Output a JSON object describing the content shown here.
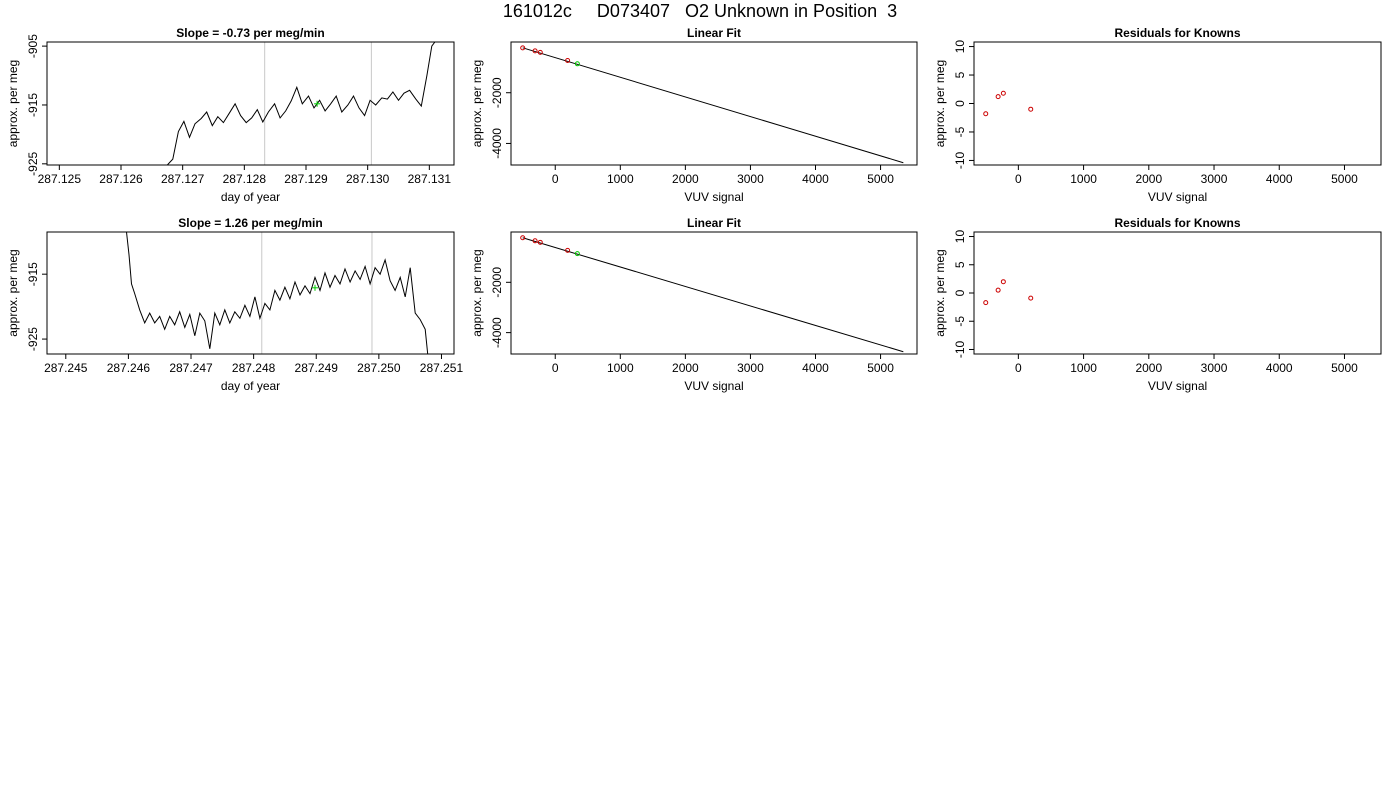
{
  "title": "161012c     D073407   O2 Unknown in Position  3",
  "chart_data": [
    {
      "type": "line",
      "title": "Slope =  -0.73  per meg/min",
      "xlabel": "day of year",
      "ylabel": "approx. per meg",
      "xlim": [
        287.1248,
        287.1314
      ],
      "ylim": [
        -925.2,
        -904.3
      ],
      "xticks": [
        "287.125",
        "287.126",
        "287.127",
        "287.128",
        "287.129",
        "287.130",
        "287.131"
      ],
      "yticks": [
        "-925",
        "-915",
        "-905"
      ],
      "vlines": [
        287.12833,
        287.13006
      ],
      "marker": {
        "x": 287.12918,
        "y": -914.8
      },
      "trace_start": [
        287.12675,
        -925.2
      ],
      "trace": [
        [
          287.12684,
          -924.2
        ],
        [
          287.12693,
          -919.5
        ],
        [
          287.12702,
          -917.8
        ],
        [
          287.12711,
          -920.5
        ],
        [
          287.1272,
          -918.2
        ],
        [
          287.1273,
          -917.3
        ],
        [
          287.12739,
          -916.2
        ],
        [
          287.12748,
          -918.5
        ],
        [
          287.12757,
          -917.0
        ],
        [
          287.12766,
          -918.0
        ],
        [
          287.12775,
          -916.5
        ],
        [
          287.12785,
          -914.8
        ],
        [
          287.12794,
          -916.8
        ],
        [
          287.12803,
          -918.0
        ],
        [
          287.12812,
          -917.2
        ],
        [
          287.12821,
          -915.8
        ],
        [
          287.1283,
          -917.9
        ],
        [
          287.12839,
          -916.2
        ],
        [
          287.12849,
          -914.8
        ],
        [
          287.12858,
          -917.2
        ],
        [
          287.12867,
          -916.0
        ],
        [
          287.12876,
          -914.3
        ],
        [
          287.12885,
          -912.0
        ],
        [
          287.12894,
          -914.8
        ],
        [
          287.12904,
          -913.5
        ],
        [
          287.12913,
          -915.5
        ],
        [
          287.12922,
          -914.2
        ],
        [
          287.12931,
          -916.0
        ],
        [
          287.1294,
          -914.8
        ],
        [
          287.12949,
          -913.5
        ],
        [
          287.12958,
          -916.2
        ],
        [
          287.12968,
          -915.0
        ],
        [
          287.12977,
          -913.5
        ],
        [
          287.12986,
          -915.5
        ],
        [
          287.12995,
          -916.8
        ],
        [
          287.13004,
          -914.2
        ],
        [
          287.13013,
          -915.0
        ],
        [
          287.13023,
          -913.8
        ],
        [
          287.13032,
          -914.0
        ],
        [
          287.13041,
          -912.8
        ],
        [
          287.1305,
          -914.2
        ],
        [
          287.13059,
          -913.0
        ],
        [
          287.13068,
          -912.5
        ],
        [
          287.13078,
          -914.0
        ],
        [
          287.13087,
          -915.2
        ],
        [
          287.13096,
          -910.0
        ],
        [
          287.13104,
          -905.0
        ],
        [
          287.13109,
          -904.3
        ]
      ]
    },
    {
      "type": "scatter",
      "title": "Linear Fit",
      "xlabel": "VUV signal",
      "ylabel": "approx. per meg",
      "xlim": [
        -680,
        5560
      ],
      "ylim": [
        -4850,
        0
      ],
      "xticks": [
        "0",
        "1000",
        "2000",
        "3000",
        "4000",
        "5000"
      ],
      "yticks": [
        "-4000",
        "-2000"
      ],
      "fit_line": [
        [
          -500,
          -230
        ],
        [
          5350,
          -4760
        ]
      ],
      "points": [
        [
          -500,
          -230
        ],
        [
          -310,
          -350
        ],
        [
          -230,
          -410
        ],
        [
          190,
          -730
        ]
      ],
      "unknown": [
        [
          340,
          -860
        ]
      ]
    },
    {
      "type": "scatter",
      "title": "Residuals for Knowns",
      "xlabel": "VUV signal",
      "ylabel": "approx. per meg",
      "xlim": [
        -680,
        5560
      ],
      "ylim": [
        -10.8,
        10.8
      ],
      "xticks": [
        "0",
        "1000",
        "2000",
        "3000",
        "4000",
        "5000"
      ],
      "yticks": [
        "-10",
        "-5",
        "0",
        "5",
        "10"
      ],
      "points": [
        [
          -500,
          -1.8
        ],
        [
          -310,
          1.2
        ],
        [
          -230,
          1.8
        ],
        [
          190,
          -1.0
        ]
      ]
    },
    {
      "type": "line",
      "title": "Slope =  1.26  per meg/min",
      "xlabel": "day of year",
      "ylabel": "approx. per meg",
      "xlim": [
        287.2447,
        287.2512
      ],
      "ylim": [
        -927.3,
        -908.5
      ],
      "xticks": [
        "287.245",
        "287.246",
        "287.247",
        "287.248",
        "287.249",
        "287.250",
        "287.251"
      ],
      "yticks": [
        "-925",
        "-915"
      ],
      "vlines": [
        287.24813,
        287.24989
      ],
      "marker": {
        "x": 287.24898,
        "y": -917.1
      },
      "trace_start": [
        287.24597,
        -908.5
      ],
      "trace": [
        [
          287.24601,
          -912.0
        ],
        [
          287.24605,
          -916.5
        ],
        [
          287.2461,
          -918.0
        ],
        [
          287.24618,
          -920.5
        ],
        [
          287.24626,
          -922.5
        ],
        [
          287.24634,
          -921.0
        ],
        [
          287.24642,
          -922.5
        ],
        [
          287.2465,
          -921.5
        ],
        [
          287.24658,
          -923.5
        ],
        [
          287.24666,
          -921.5
        ],
        [
          287.24674,
          -922.8
        ],
        [
          287.24682,
          -920.8
        ],
        [
          287.2469,
          -923.2
        ],
        [
          287.24698,
          -921.2
        ],
        [
          287.24706,
          -924.5
        ],
        [
          287.24714,
          -921.0
        ],
        [
          287.24722,
          -922.2
        ],
        [
          287.2473,
          -926.5
        ],
        [
          287.24738,
          -921.0
        ],
        [
          287.24746,
          -922.8
        ],
        [
          287.24754,
          -920.5
        ],
        [
          287.24762,
          -922.5
        ],
        [
          287.2477,
          -920.8
        ],
        [
          287.24778,
          -921.8
        ],
        [
          287.24786,
          -919.8
        ],
        [
          287.24794,
          -921.5
        ],
        [
          287.24802,
          -918.5
        ],
        [
          287.2481,
          -921.8
        ],
        [
          287.24818,
          -919.5
        ],
        [
          287.24826,
          -920.5
        ],
        [
          287.24834,
          -917.5
        ],
        [
          287.24842,
          -919.0
        ],
        [
          287.2485,
          -917.0
        ],
        [
          287.24858,
          -918.8
        ],
        [
          287.24866,
          -916.2
        ],
        [
          287.24874,
          -918.2
        ],
        [
          287.24882,
          -916.8
        ],
        [
          287.2489,
          -918.0
        ],
        [
          287.24898,
          -915.5
        ],
        [
          287.24906,
          -917.5
        ],
        [
          287.24914,
          -914.8
        ],
        [
          287.24922,
          -917.0
        ],
        [
          287.2493,
          -915.2
        ],
        [
          287.24938,
          -916.5
        ],
        [
          287.24946,
          -914.2
        ],
        [
          287.24954,
          -916.2
        ],
        [
          287.24962,
          -914.5
        ],
        [
          287.2497,
          -915.8
        ],
        [
          287.24978,
          -913.8
        ],
        [
          287.24986,
          -916.5
        ],
        [
          287.24994,
          -914.0
        ],
        [
          287.25002,
          -915.0
        ],
        [
          287.2501,
          -912.8
        ],
        [
          287.25018,
          -916.0
        ],
        [
          287.25026,
          -917.5
        ],
        [
          287.25034,
          -915.5
        ],
        [
          287.25042,
          -918.5
        ],
        [
          287.2505,
          -914.0
        ],
        [
          287.25058,
          -921.0
        ],
        [
          287.25066,
          -922.0
        ],
        [
          287.25074,
          -923.5
        ],
        [
          287.25078,
          -927.3
        ]
      ]
    },
    {
      "type": "scatter",
      "title": "Linear Fit",
      "xlabel": "VUV signal",
      "ylabel": "approx. per meg",
      "xlim": [
        -680,
        5560
      ],
      "ylim": [
        -4850,
        0
      ],
      "xticks": [
        "0",
        "1000",
        "2000",
        "3000",
        "4000",
        "5000"
      ],
      "yticks": [
        "-4000",
        "-2000"
      ],
      "fit_line": [
        [
          -500,
          -230
        ],
        [
          5350,
          -4760
        ]
      ],
      "points": [
        [
          -500,
          -230
        ],
        [
          -310,
          -350
        ],
        [
          -230,
          -410
        ],
        [
          190,
          -730
        ]
      ],
      "unknown": [
        [
          340,
          -860
        ]
      ]
    },
    {
      "type": "scatter",
      "title": "Residuals for Knowns",
      "xlabel": "VUV signal",
      "ylabel": "approx. per meg",
      "xlim": [
        -680,
        5560
      ],
      "ylim": [
        -10.8,
        10.8
      ],
      "xticks": [
        "0",
        "1000",
        "2000",
        "3000",
        "4000",
        "5000"
      ],
      "yticks": [
        "-10",
        "-5",
        "0",
        "5",
        "10"
      ],
      "points": [
        [
          -500,
          -1.7
        ],
        [
          -310,
          0.5
        ],
        [
          -230,
          2.0
        ],
        [
          190,
          -0.9
        ]
      ]
    }
  ]
}
